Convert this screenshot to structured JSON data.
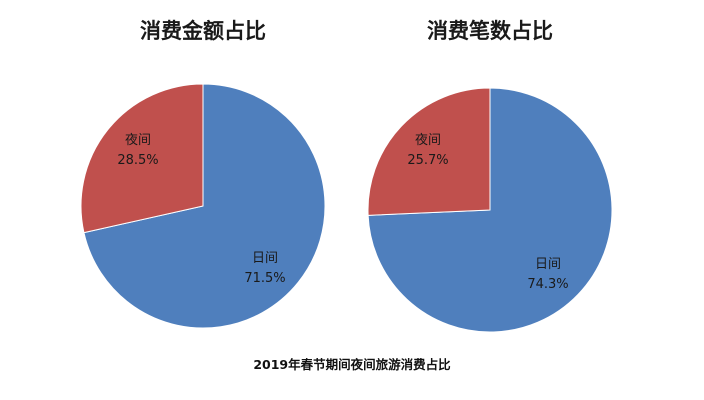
{
  "caption": "2019年春节期间夜间旅游消费占比",
  "colors": {
    "day": "#4f7fbd",
    "night": "#c0504d",
    "edge": "#ffffff"
  },
  "chart_data": [
    {
      "type": "pie",
      "title": "消费金额占比",
      "slices": [
        {
          "label": "日间",
          "value": 71.5,
          "display": "71.5%",
          "color": "#4f7fbd"
        },
        {
          "label": "夜间",
          "value": 28.5,
          "display": "28.5%",
          "color": "#c0504d"
        }
      ]
    },
    {
      "type": "pie",
      "title": "消费笔数占比",
      "slices": [
        {
          "label": "日间",
          "value": 74.3,
          "display": "74.3%",
          "color": "#4f7fbd"
        },
        {
          "label": "夜间",
          "value": 25.7,
          "display": "25.7%",
          "color": "#c0504d"
        }
      ]
    }
  ]
}
